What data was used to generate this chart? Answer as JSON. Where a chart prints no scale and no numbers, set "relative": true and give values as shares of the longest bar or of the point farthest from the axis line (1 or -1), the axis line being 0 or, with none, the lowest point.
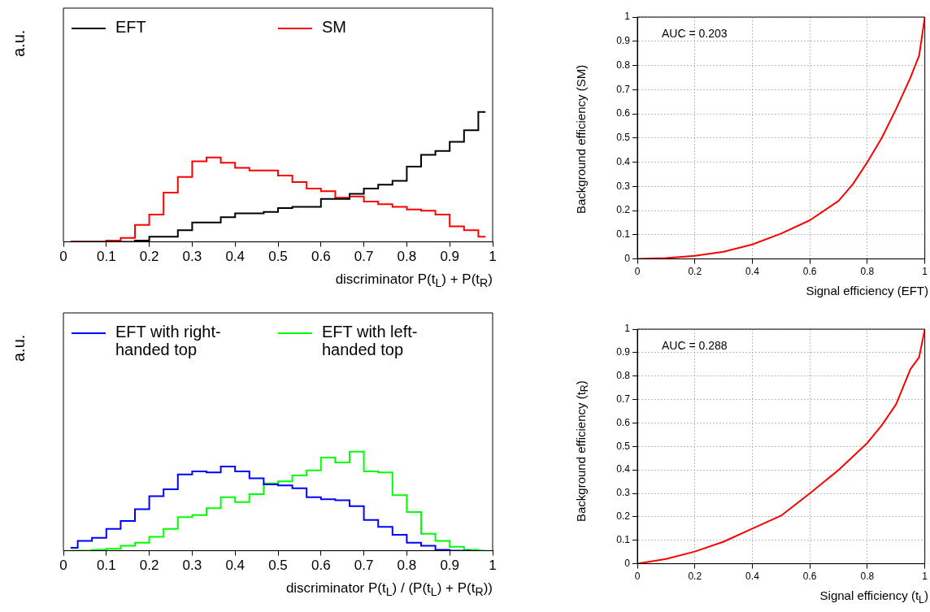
{
  "chart_data": [
    {
      "type": "step",
      "ylabel": "a.u.",
      "xlabel": "discriminator P(t$_{L}$) + P(t$_{R}$)",
      "relative": true,
      "legend": "top",
      "xlim": [
        0,
        1
      ],
      "xticks": [
        0,
        0.1,
        0.2,
        0.3,
        0.4,
        0.5,
        0.6,
        0.7,
        0.8,
        0.9,
        1
      ],
      "x": [
        0.0167,
        0.05,
        0.0833,
        0.1167,
        0.15,
        0.1833,
        0.2167,
        0.25,
        0.2833,
        0.3167,
        0.35,
        0.3833,
        0.4167,
        0.45,
        0.4833,
        0.5167,
        0.55,
        0.5833,
        0.6167,
        0.65,
        0.6833,
        0.7167,
        0.75,
        0.7833,
        0.8167,
        0.85,
        0.8833,
        0.9167,
        0.95,
        0.9833
      ],
      "series": [
        {
          "name": "EFT",
          "color": "#000000",
          "values": [
            0,
            0,
            0,
            0,
            0,
            0.01,
            0.04,
            0.04,
            0.09,
            0.15,
            0.15,
            0.19,
            0.22,
            0.22,
            0.23,
            0.26,
            0.27,
            0.27,
            0.33,
            0.33,
            0.37,
            0.41,
            0.44,
            0.47,
            0.58,
            0.67,
            0.7,
            0.77,
            0.86,
            1
          ]
        },
        {
          "name": "SM",
          "color": "#ff0000",
          "values": [
            0,
            0,
            0,
            0.01,
            0.03,
            0.13,
            0.21,
            0.38,
            0.5,
            0.62,
            0.65,
            0.61,
            0.57,
            0.55,
            0.55,
            0.51,
            0.46,
            0.41,
            0.39,
            0.34,
            0.35,
            0.31,
            0.29,
            0.27,
            0.25,
            0.24,
            0.21,
            0.12,
            0.09,
            0.04
          ]
        }
      ]
    },
    {
      "type": "line",
      "xlabel": "Signal efficiency (EFT)",
      "ylabel": "Background efficiency (SM)",
      "annotations": [
        "AUC = 0.203"
      ],
      "grid": true,
      "xlim": [
        0,
        1
      ],
      "ylim": [
        0,
        1
      ],
      "xticks": [
        0,
        0.2,
        0.4,
        0.6,
        0.8,
        1
      ],
      "yticks": [
        0,
        0.1,
        0.2,
        0.3,
        0.4,
        0.5,
        0.6,
        0.7,
        0.8,
        0.9,
        1
      ],
      "series": [
        {
          "color": "#ff0000",
          "x": [
            0,
            0.1,
            0.2,
            0.3,
            0.4,
            0.5,
            0.6,
            0.65,
            0.7,
            0.75,
            0.8,
            0.85,
            0.9,
            0.95,
            0.98,
            1
          ],
          "values": [
            0,
            0.004,
            0.013,
            0.03,
            0.06,
            0.105,
            0.16,
            0.2,
            0.24,
            0.31,
            0.4,
            0.5,
            0.62,
            0.75,
            0.84,
            1
          ]
        }
      ]
    },
    {
      "type": "step",
      "ylabel": "a.u.",
      "xlabel": "discriminator P(t$_{L}$) / (P(t$_{L}$) + P(t$_{R}$))",
      "relative": true,
      "legend": "top",
      "xlim": [
        0,
        1
      ],
      "xticks": [
        0,
        0.1,
        0.2,
        0.3,
        0.4,
        0.5,
        0.6,
        0.7,
        0.8,
        0.9,
        1
      ],
      "x": [
        0.0167,
        0.05,
        0.0833,
        0.1167,
        0.15,
        0.1833,
        0.2167,
        0.25,
        0.2833,
        0.3167,
        0.35,
        0.3833,
        0.4167,
        0.45,
        0.4833,
        0.5167,
        0.55,
        0.5833,
        0.6167,
        0.65,
        0.6833,
        0.7167,
        0.75,
        0.7833,
        0.8167,
        0.85,
        0.8833,
        0.9167,
        0.95,
        0.9833
      ],
      "series": [
        {
          "name": "EFT with right-handed top",
          "color": "#0000ff",
          "values": [
            0.03,
            0.1,
            0.13,
            0.22,
            0.3,
            0.42,
            0.55,
            0.62,
            0.77,
            0.8,
            0.79,
            0.85,
            0.8,
            0.73,
            0.67,
            0.66,
            0.63,
            0.54,
            0.52,
            0.51,
            0.45,
            0.31,
            0.24,
            0.16,
            0.08,
            0.05,
            0.01,
            0,
            0,
            null
          ]
        },
        {
          "name": "EFT with left-handed top",
          "color": "#00ff00",
          "values": [
            0,
            0,
            0.01,
            0.02,
            0.05,
            0.08,
            0.14,
            0.22,
            0.34,
            0.36,
            0.43,
            0.54,
            0.49,
            0.57,
            0.68,
            0.7,
            0.76,
            0.81,
            0.94,
            0.89,
            1,
            0.8,
            0.79,
            0.56,
            0.39,
            0.17,
            0.1,
            0.04,
            0.01,
            0
          ]
        }
      ]
    },
    {
      "type": "line",
      "xlabel": "Signal efficiency (t$_{L}$)",
      "ylabel": "Background efficiency (t$_{R}$)",
      "annotations": [
        "AUC = 0.288"
      ],
      "grid": true,
      "xlim": [
        0,
        1
      ],
      "ylim": [
        0,
        1
      ],
      "xticks": [
        0,
        0.2,
        0.4,
        0.6,
        0.8,
        1
      ],
      "yticks": [
        0,
        0.1,
        0.2,
        0.3,
        0.4,
        0.5,
        0.6,
        0.7,
        0.8,
        0.9,
        1
      ],
      "series": [
        {
          "color": "#ff0000",
          "x": [
            0,
            0.1,
            0.2,
            0.3,
            0.4,
            0.5,
            0.6,
            0.7,
            0.8,
            0.85,
            0.9,
            0.95,
            0.98,
            1
          ],
          "values": [
            0,
            0.02,
            0.052,
            0.094,
            0.15,
            0.205,
            0.3,
            0.4,
            0.515,
            0.59,
            0.68,
            0.83,
            0.88,
            1
          ]
        }
      ]
    }
  ]
}
